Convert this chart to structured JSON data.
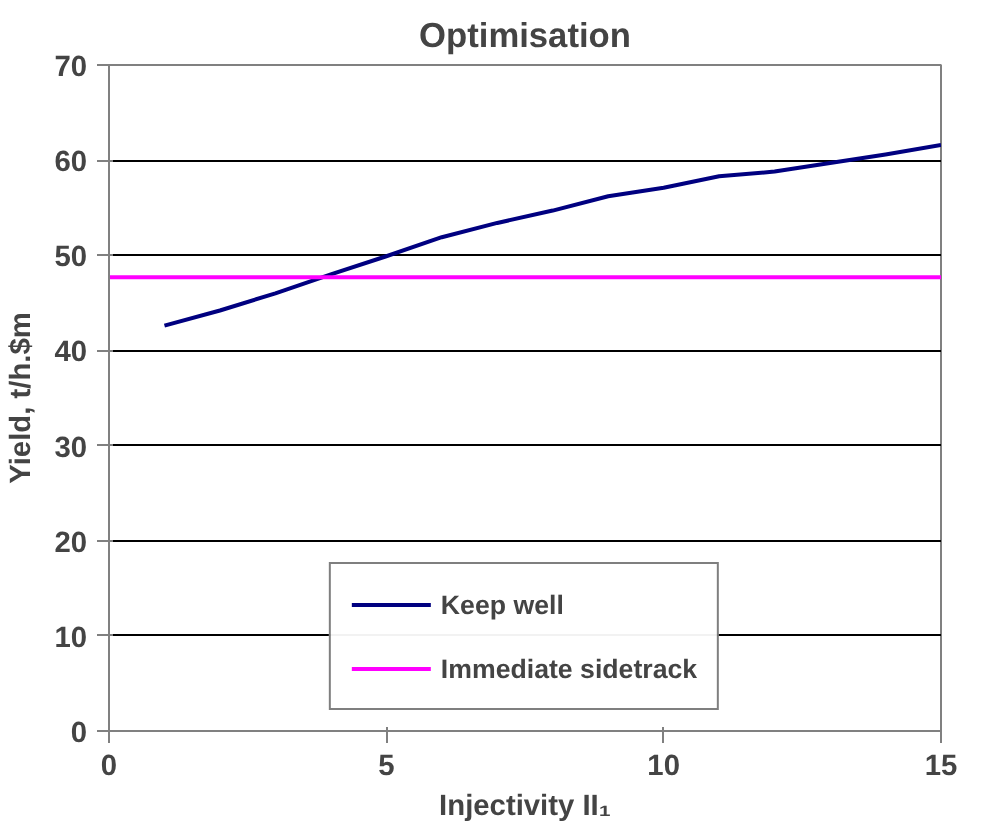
{
  "chart_data": {
    "type": "line",
    "title": "Optimisation",
    "xlabel": "Injectivity II₁",
    "ylabel": "Yield, t/h.$m",
    "xlim": [
      0,
      15
    ],
    "xticks": [
      0,
      5,
      10,
      15
    ],
    "ylim": [
      0,
      70
    ],
    "yticks": [
      0,
      10,
      20,
      30,
      40,
      50,
      60,
      70
    ],
    "grid": "y",
    "legend": "bottom",
    "marker": "none",
    "line_style": "solid",
    "series": [
      {
        "name": "Keep well",
        "color": "#000080",
        "x": [
          1,
          2,
          3,
          4,
          5,
          6,
          7,
          8,
          9,
          10,
          11,
          12,
          13,
          14,
          15
        ],
        "values": [
          42.6,
          44.2,
          46.0,
          48.0,
          49.9,
          51.9,
          53.4,
          54.7,
          56.2,
          57.1,
          58.3,
          58.8,
          59.7,
          60.6,
          61.6
        ]
      },
      {
        "name": "Immediate sidetrack",
        "color": "#ff00ff",
        "x": [
          0,
          15
        ],
        "values": [
          47.7,
          47.7
        ]
      }
    ]
  }
}
